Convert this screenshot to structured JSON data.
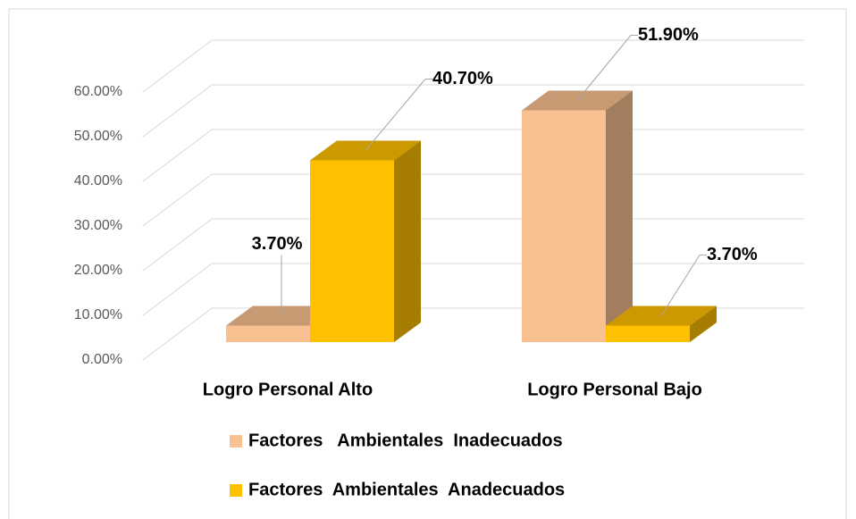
{
  "chart_data": {
    "type": "bar3d",
    "categories": [
      "Logro Personal Alto",
      "Logro Personal Bajo"
    ],
    "series": [
      {
        "name": "Factores   Ambientales  Inadecuados",
        "color": "#f9c091",
        "values": [
          3.7,
          51.9
        ],
        "value_labels": [
          "3.70%",
          "51.90%"
        ]
      },
      {
        "name": "Factores  Ambientales  Anadecuados",
        "color": "#ffc000",
        "values": [
          40.7,
          3.7
        ],
        "value_labels": [
          "40.70%",
          "3.70%"
        ]
      }
    ],
    "ylim": [
      0,
      60
    ],
    "yticks": [
      {
        "value": 0,
        "label": "0.00%"
      },
      {
        "value": 10,
        "label": "10.00%"
      },
      {
        "value": 20,
        "label": "20.00%"
      },
      {
        "value": 30,
        "label": "30.00%"
      },
      {
        "value": 40,
        "label": "40.00%"
      },
      {
        "value": 50,
        "label": "50.00%"
      },
      {
        "value": 60,
        "label": "60.00%"
      }
    ],
    "grid": true,
    "legend": "bottom"
  }
}
